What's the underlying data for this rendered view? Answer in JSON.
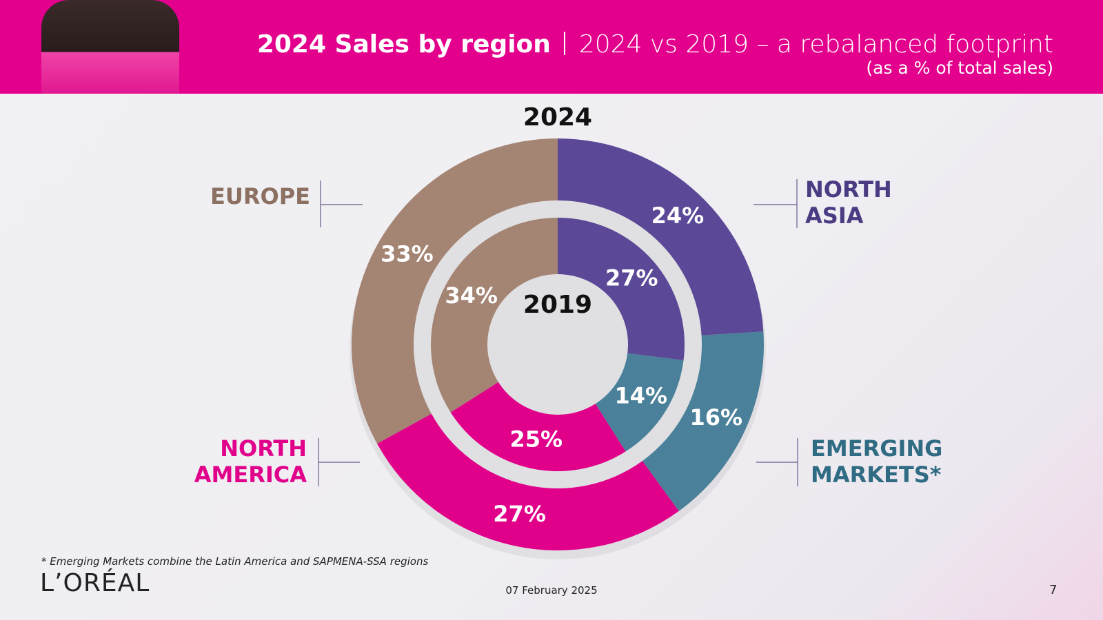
{
  "header": {
    "title": "2024 Sales by region",
    "subtitle": "2024 vs 2019 – a rebalanced footprint",
    "unit_note": "(as a % of total sales)"
  },
  "chart_data": {
    "type": "donut",
    "categories": [
      "NORTH ASIA",
      "EMERGING MARKETS*",
      "NORTH AMERICA",
      "EUROPE"
    ],
    "colors": [
      "#5b4896",
      "#4a8099",
      "#e0008a",
      "#a48473"
    ],
    "label_colors": [
      "#4b3b82",
      "#2f6b82",
      "#e0008a",
      "#8c7062"
    ],
    "series": [
      {
        "name": "2024",
        "values": [
          24,
          16,
          27,
          33
        ],
        "value_labels": [
          "24%",
          "16%",
          "27%",
          "33%"
        ]
      },
      {
        "name": "2019",
        "values": [
          27,
          14,
          25,
          34
        ],
        "value_labels": [
          "27%",
          "14%",
          "25%",
          "34%"
        ]
      }
    ]
  },
  "footer": {
    "note": "* Emerging Markets combine the Latin America and SAPMENA-SSA regions",
    "logo": "L’ORÉAL",
    "date": "07 February 2025",
    "page": "7"
  }
}
